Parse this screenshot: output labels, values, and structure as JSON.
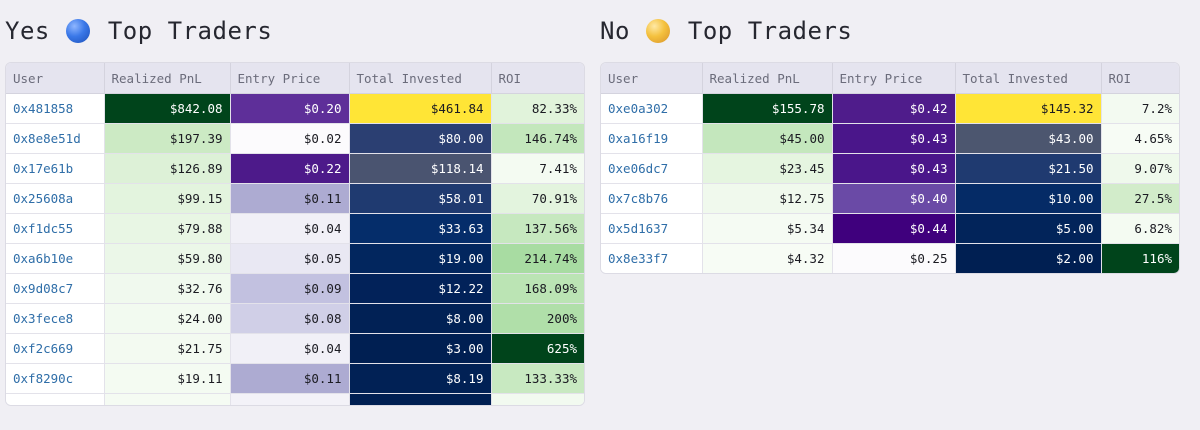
{
  "columns": {
    "user": "User",
    "pnl": "Realized PnL",
    "entry": "Entry Price",
    "invested": "Total Invested",
    "roi": "ROI"
  },
  "yes": {
    "label": "Yes",
    "title": "Top Traders",
    "orb_color": "#3a78e8",
    "rows": [
      {
        "user": "0x481858",
        "pnl": "$842.08",
        "entry": "$0.20",
        "invested": "$461.84",
        "roi": "82.33%",
        "pnl_bg": "#00441b",
        "entry_bg": "#5e2f99",
        "invested_bg": "#ffe536",
        "roi_bg": "#e1f3db"
      },
      {
        "user": "0x8e8e51d",
        "pnl": "$197.39",
        "entry": "$0.02",
        "invested": "$80.00",
        "roi": "146.74%",
        "pnl_bg": "#cceac4",
        "entry_bg": "#fcfbfd",
        "invested_bg": "#2b3f72",
        "roi_bg": "#c3e7bc"
      },
      {
        "user": "0x17e61b",
        "pnl": "$126.89",
        "entry": "$0.22",
        "invested": "$118.14",
        "roi": "7.41%",
        "pnl_bg": "#ddf1d7",
        "entry_bg": "#4d1a8a",
        "invested_bg": "#4a5470",
        "roi_bg": "#f4fbf2"
      },
      {
        "user": "0x25608a",
        "pnl": "$99.15",
        "entry": "$0.11",
        "invested": "$58.01",
        "roi": "70.91%",
        "pnl_bg": "#e3f4de",
        "entry_bg": "#adabd2",
        "invested_bg": "#1f3a70",
        "roi_bg": "#e3f4de"
      },
      {
        "user": "0xf1dc55",
        "pnl": "$79.88",
        "entry": "$0.04",
        "invested": "$33.63",
        "roi": "137.56%",
        "pnl_bg": "#e8f6e4",
        "entry_bg": "#f1f0f7",
        "invested_bg": "#052d6a",
        "roi_bg": "#c6e8bf"
      },
      {
        "user": "0xa6b10e",
        "pnl": "$59.80",
        "entry": "$0.05",
        "invested": "$19.00",
        "roi": "214.74%",
        "pnl_bg": "#ebf7e8",
        "entry_bg": "#e9e8f3",
        "invested_bg": "#02265e",
        "roi_bg": "#a8dca2"
      },
      {
        "user": "0x9d08c7",
        "pnl": "$32.76",
        "entry": "$0.09",
        "invested": "$12.22",
        "roi": "168.09%",
        "pnl_bg": "#f0f9ee",
        "entry_bg": "#c2c1e0",
        "invested_bg": "#022259",
        "roi_bg": "#bbe4b4"
      },
      {
        "user": "0x3fece8",
        "pnl": "$24.00",
        "entry": "$0.08",
        "invested": "$8.00",
        "roi": "200%",
        "pnl_bg": "#f2faf0",
        "entry_bg": "#d0cfe7",
        "invested_bg": "#012155",
        "roi_bg": "#b0dfa9"
      },
      {
        "user": "0xf2c669",
        "pnl": "$21.75",
        "entry": "$0.04",
        "invested": "$3.00",
        "roi": "625%",
        "pnl_bg": "#f3faf1",
        "entry_bg": "#f1f0f7",
        "invested_bg": "#001f52",
        "roi_bg": "#00441b"
      },
      {
        "user": "0xf8290c",
        "pnl": "$19.11",
        "entry": "$0.11",
        "invested": "$8.19",
        "roi": "133.33%",
        "pnl_bg": "#f4fbf2",
        "entry_bg": "#adabd2",
        "invested_bg": "#012155",
        "roi_bg": "#c8e9c1"
      },
      {
        "user": "",
        "pnl": "",
        "entry": "",
        "invested": "",
        "roi": "",
        "pnl_bg": "#f5fbf3",
        "entry_bg": "#f3f2f8",
        "invested_bg": "#001f52",
        "roi_bg": "#f2faf0"
      }
    ]
  },
  "no": {
    "label": "No",
    "title": "Top Traders",
    "orb_color": "#f4c13e",
    "rows": [
      {
        "user": "0xe0a302",
        "pnl": "$155.78",
        "entry": "$0.42",
        "invested": "$145.32",
        "roi": "7.2%",
        "pnl_bg": "#00441b",
        "entry_bg": "#4f1c8b",
        "invested_bg": "#ffe536",
        "roi_bg": "#f3faf1"
      },
      {
        "user": "0xa16f19",
        "pnl": "$45.00",
        "entry": "$0.43",
        "invested": "$43.00",
        "roi": "4.65%",
        "pnl_bg": "#c4e7bd",
        "entry_bg": "#4a168a",
        "invested_bg": "#4c566f",
        "roi_bg": "#f7fcf5"
      },
      {
        "user": "0xe06dc7",
        "pnl": "$23.45",
        "entry": "$0.43",
        "invested": "$21.50",
        "roi": "9.07%",
        "pnl_bg": "#e5f5e0",
        "entry_bg": "#4a168a",
        "invested_bg": "#1f3a70",
        "roi_bg": "#eff9ec"
      },
      {
        "user": "0x7c8b76",
        "pnl": "$12.75",
        "entry": "$0.40",
        "invested": "$10.00",
        "roi": "27.5%",
        "pnl_bg": "#f0f9ed",
        "entry_bg": "#6a4aa6",
        "invested_bg": "#052b66",
        "roi_bg": "#d2ecca"
      },
      {
        "user": "0x5d1637",
        "pnl": "$5.34",
        "entry": "$0.44",
        "invested": "$5.00",
        "roi": "6.82%",
        "pnl_bg": "#f5fbf3",
        "entry_bg": "#3f007d",
        "invested_bg": "#02245a",
        "roi_bg": "#f4fbf2"
      },
      {
        "user": "0x8e33f7",
        "pnl": "$4.32",
        "entry": "$0.25",
        "invested": "$2.00",
        "roi": "116%",
        "pnl_bg": "#f7fcf5",
        "entry_bg": "#fcfbfd",
        "invested_bg": "#001f52",
        "roi_bg": "#00441b"
      }
    ]
  }
}
